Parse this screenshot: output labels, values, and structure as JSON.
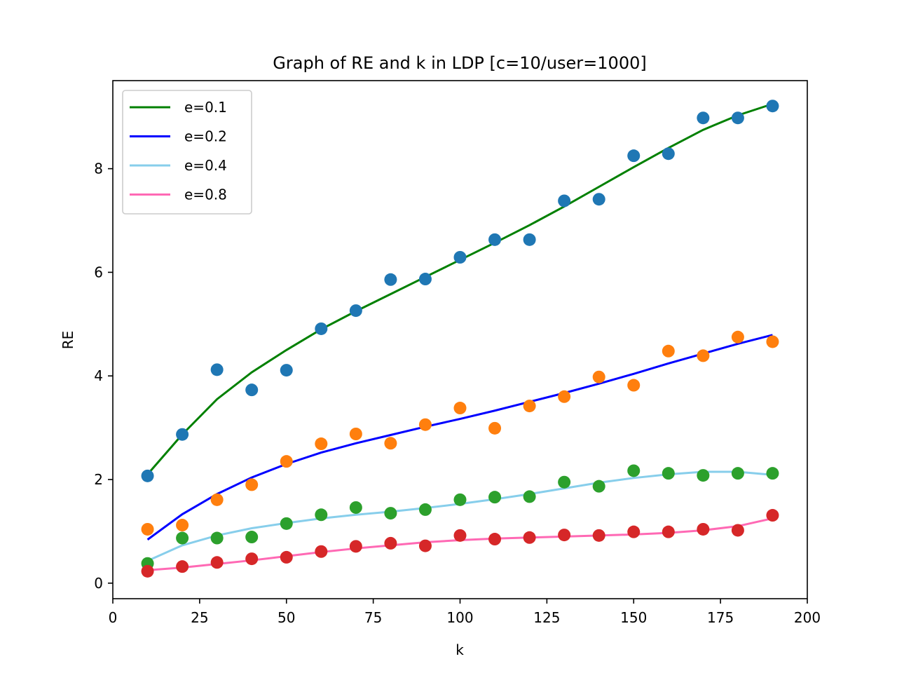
{
  "chart_data": {
    "type": "scatter",
    "title": "Graph of RE and k in LDP [c=10/user=1000]",
    "xlabel": "k",
    "ylabel": "RE",
    "xlim": [
      0,
      200
    ],
    "ylim": [
      -0.3,
      9.7
    ],
    "xticks": [
      0,
      25,
      50,
      75,
      100,
      125,
      150,
      175,
      200
    ],
    "yticks": [
      0,
      2,
      4,
      6,
      8
    ],
    "grid": false,
    "legend": "upper-left",
    "x": [
      10,
      20,
      30,
      40,
      50,
      60,
      70,
      80,
      90,
      100,
      110,
      120,
      130,
      140,
      150,
      160,
      170,
      180,
      190
    ],
    "series": [
      {
        "name": "e=0.1",
        "line_color": "#008000",
        "point_color": "#1f77b4",
        "points": [
          2.07,
          2.87,
          4.12,
          3.73,
          4.11,
          4.91,
          5.26,
          5.86,
          5.87,
          6.29,
          6.63,
          6.63,
          7.38,
          7.41,
          8.25,
          8.29,
          8.98,
          8.98,
          9.21
        ],
        "fit": [
          2.1,
          2.87,
          3.55,
          4.07,
          4.5,
          4.9,
          5.25,
          5.58,
          5.91,
          6.24,
          6.57,
          6.91,
          7.27,
          7.65,
          8.03,
          8.4,
          8.75,
          9.03,
          9.25
        ]
      },
      {
        "name": "e=0.2",
        "line_color": "#0000ff",
        "point_color": "#ff7f0e",
        "points": [
          1.04,
          1.12,
          1.61,
          1.9,
          2.35,
          2.69,
          2.88,
          2.7,
          3.06,
          3.38,
          2.99,
          3.42,
          3.6,
          3.98,
          3.82,
          4.48,
          4.39,
          4.75,
          4.66
        ],
        "fit": [
          0.84,
          1.33,
          1.72,
          2.04,
          2.3,
          2.52,
          2.7,
          2.86,
          3.02,
          3.17,
          3.33,
          3.5,
          3.67,
          3.85,
          4.04,
          4.24,
          4.43,
          4.62,
          4.79
        ]
      },
      {
        "name": "e=0.4",
        "line_color": "#87ceeb",
        "point_color": "#2ca02c",
        "points": [
          0.38,
          0.87,
          0.87,
          0.89,
          1.15,
          1.32,
          1.46,
          1.35,
          1.42,
          1.61,
          1.66,
          1.67,
          1.95,
          1.87,
          2.17,
          2.12,
          2.08,
          2.12,
          2.12
        ],
        "fit": [
          0.43,
          0.73,
          0.92,
          1.06,
          1.16,
          1.25,
          1.32,
          1.38,
          1.45,
          1.53,
          1.62,
          1.72,
          1.83,
          1.94,
          2.03,
          2.1,
          2.15,
          2.15,
          2.09
        ]
      },
      {
        "name": "e=0.8",
        "line_color": "#ff69b4",
        "point_color": "#d62728",
        "points": [
          0.23,
          0.32,
          0.4,
          0.47,
          0.5,
          0.61,
          0.71,
          0.77,
          0.72,
          0.92,
          0.85,
          0.88,
          0.93,
          0.92,
          0.99,
          0.99,
          1.04,
          1.02,
          1.31
        ],
        "fit": [
          0.25,
          0.3,
          0.37,
          0.44,
          0.52,
          0.6,
          0.67,
          0.73,
          0.79,
          0.83,
          0.86,
          0.88,
          0.9,
          0.92,
          0.94,
          0.97,
          1.02,
          1.1,
          1.25
        ]
      }
    ]
  }
}
